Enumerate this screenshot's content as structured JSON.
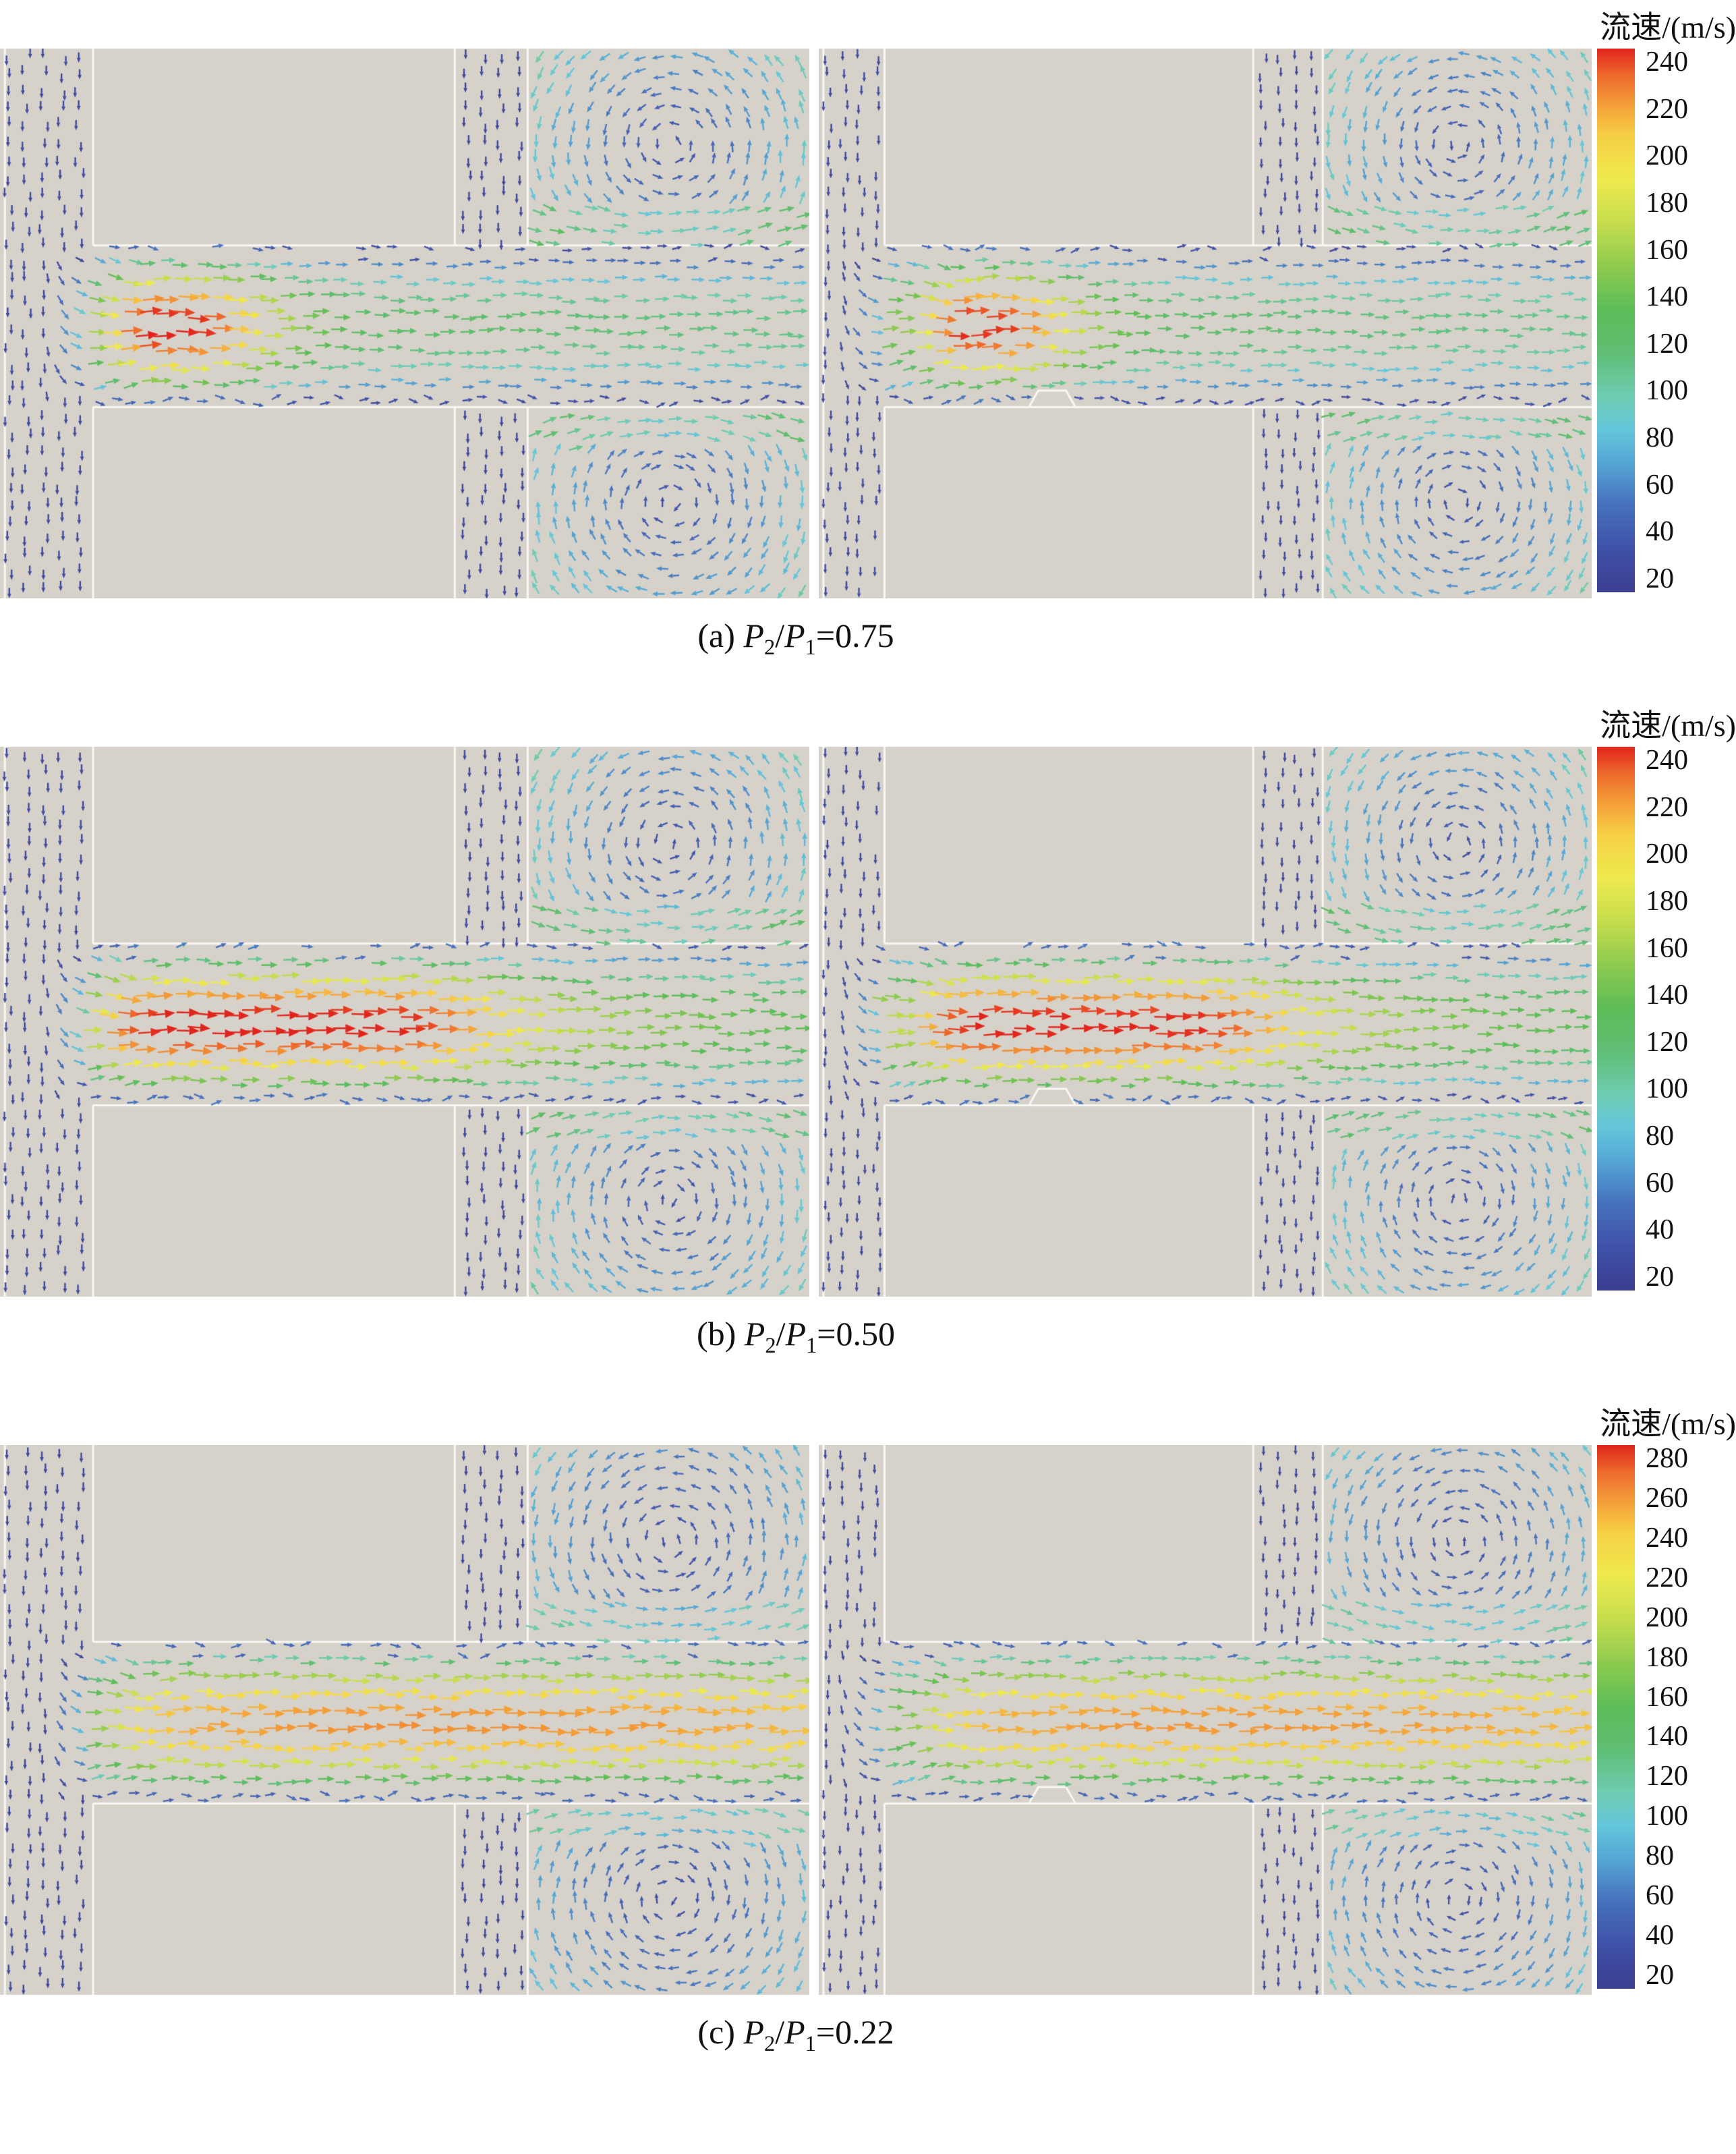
{
  "page": {
    "background": "#ffffff"
  },
  "figure": {
    "rows": [
      {
        "id": "a",
        "caption": {
          "plain_text": "(a) P2/P1=0.75",
          "segments": [
            {
              "text": "(a) ",
              "style": "plain"
            },
            {
              "text": "P",
              "style": "italic"
            },
            {
              "text": "2",
              "style": "sub"
            },
            {
              "text": "/",
              "style": "plain"
            },
            {
              "text": "P",
              "style": "italic"
            },
            {
              "text": "1",
              "style": "sub"
            },
            {
              "text": "=0.75",
              "style": "plain"
            }
          ]
        },
        "colorbar": {
          "title": "流速/(m/s)",
          "max": 240,
          "min": 20,
          "ticks": [
            240,
            220,
            200,
            180,
            160,
            140,
            120,
            100,
            80,
            60,
            40,
            20
          ]
        }
      },
      {
        "id": "b",
        "caption": {
          "plain_text": "(b) P2/P1=0.50",
          "segments": [
            {
              "text": "(b) ",
              "style": "plain"
            },
            {
              "text": "P",
              "style": "italic"
            },
            {
              "text": "2",
              "style": "sub"
            },
            {
              "text": "/",
              "style": "plain"
            },
            {
              "text": "P",
              "style": "italic"
            },
            {
              "text": "1",
              "style": "sub"
            },
            {
              "text": "=0.50",
              "style": "plain"
            }
          ]
        },
        "colorbar": {
          "title": "流速/(m/s)",
          "max": 240,
          "min": 20,
          "ticks": [
            240,
            220,
            200,
            180,
            160,
            140,
            120,
            100,
            80,
            60,
            40,
            20
          ]
        }
      },
      {
        "id": "c",
        "caption": {
          "plain_text": "(c) P2/P1=0.22",
          "segments": [
            {
              "text": "(c) ",
              "style": "plain"
            },
            {
              "text": "P",
              "style": "italic"
            },
            {
              "text": "2",
              "style": "sub"
            },
            {
              "text": "/",
              "style": "plain"
            },
            {
              "text": "P",
              "style": "italic"
            },
            {
              "text": "1",
              "style": "sub"
            },
            {
              "text": "=0.22",
              "style": "plain"
            }
          ]
        },
        "colorbar": {
          "title": "流速/(m/s)",
          "max": 280,
          "min": 20,
          "ticks": [
            280,
            260,
            240,
            220,
            200,
            180,
            160,
            140,
            120,
            100,
            80,
            60,
            40,
            20
          ]
        }
      }
    ]
  },
  "chart_data": [
    {
      "type": "vector_field",
      "subfigure": "a",
      "title": "(a) P2/P1=0.75",
      "pressure_ratio": 0.75,
      "colorbar": {
        "label": "流速/(m/s)",
        "units": "m/s",
        "min": 20,
        "max": 240,
        "tick_step": 20,
        "ticks": [
          240,
          220,
          200,
          180,
          160,
          140,
          120,
          100,
          80,
          60,
          40,
          20
        ]
      },
      "panels": [
        {
          "position": "left",
          "notch": false,
          "jet_profile": {
            "x": [
              0.115,
              0.15,
              0.18,
              0.26,
              0.31,
              0.37,
              0.45,
              0.6,
              0.8,
              1.0
            ],
            "speed": [
              150,
              215,
              245,
              238,
              195,
              150,
              125,
              120,
              115,
              112
            ]
          }
        },
        {
          "position": "right",
          "notch": true,
          "jet_profile": {
            "x": [
              0.115,
              0.15,
              0.18,
              0.26,
              0.31,
              0.37,
              0.45,
              0.6,
              0.8,
              1.0
            ],
            "speed": [
              150,
              210,
              242,
              235,
              190,
              148,
              124,
              118,
              114,
              110
            ]
          }
        }
      ],
      "features": [
        "inlet channels with slow downward flow ~30 m/s",
        "short high-speed jet through throat up to ~245 m/s near inlet",
        "downstream channel flow ~110-130 m/s",
        "recirculation vortices in upper and lower right chambers ~40-100 m/s"
      ]
    },
    {
      "type": "vector_field",
      "subfigure": "b",
      "title": "(b) P2/P1=0.50",
      "pressure_ratio": 0.5,
      "colorbar": {
        "label": "流速/(m/s)",
        "units": "m/s",
        "min": 20,
        "max": 240,
        "tick_step": 20,
        "ticks": [
          240,
          220,
          200,
          180,
          160,
          140,
          120,
          100,
          80,
          60,
          40,
          20
        ]
      },
      "panels": [
        {
          "position": "left",
          "notch": false,
          "jet_profile": {
            "x": [
              0.115,
              0.15,
              0.2,
              0.5,
              0.56,
              0.62,
              0.7,
              0.8,
              0.9,
              1.0
            ],
            "speed": [
              170,
              230,
              245,
              242,
              225,
              195,
              168,
              150,
              140,
              135
            ]
          }
        },
        {
          "position": "right",
          "notch": true,
          "jet_profile": {
            "x": [
              0.115,
              0.15,
              0.2,
              0.5,
              0.56,
              0.62,
              0.7,
              0.8,
              0.9,
              1.0
            ],
            "speed": [
              168,
              228,
              243,
              240,
              222,
              192,
              165,
              148,
              138,
              133
            ]
          }
        }
      ],
      "features": [
        "extended supersonic jet filling most of the throttling channel ~240 m/s",
        "recirculation vortices in right chambers ~40-100 m/s"
      ]
    },
    {
      "type": "vector_field",
      "subfigure": "c",
      "title": "(c) P2/P1=0.22",
      "pressure_ratio": 0.22,
      "colorbar": {
        "label": "流速/(m/s)",
        "units": "m/s",
        "min": 20,
        "max": 280,
        "tick_step": 20,
        "ticks": [
          280,
          260,
          240,
          220,
          200,
          180,
          160,
          140,
          120,
          100,
          80,
          60,
          40,
          20
        ]
      },
      "panels": [
        {
          "position": "left",
          "notch": false,
          "jet_profile": {
            "x": [
              0.115,
              0.16,
              0.22,
              0.4,
              0.6,
              0.8,
              0.9,
              1.0
            ],
            "speed": [
              170,
              225,
              250,
              258,
              258,
              255,
              250,
              245
            ]
          }
        },
        {
          "position": "right",
          "notch": true,
          "jet_profile": {
            "x": [
              0.115,
              0.16,
              0.22,
              0.4,
              0.6,
              0.8,
              0.9,
              1.0
            ],
            "speed": [
              168,
              222,
              248,
              256,
              256,
              253,
              248,
              243
            ]
          }
        }
      ],
      "features": [
        "jet stays near ~255 m/s across whole channel to the outlet",
        "chamber recirculation appears relatively slower (bluer) on 280 m/s scale"
      ]
    }
  ],
  "style": {
    "panel_background": "#d6d2ca",
    "boundary_line": "#f8f7f4",
    "colormap": [
      [
        0.0,
        "#3b3e8f"
      ],
      [
        0.08,
        "#3f51a8"
      ],
      [
        0.16,
        "#4671bd"
      ],
      [
        0.24,
        "#55a7d5"
      ],
      [
        0.3,
        "#63c6da"
      ],
      [
        0.36,
        "#6fccb2"
      ],
      [
        0.44,
        "#5fbe74"
      ],
      [
        0.52,
        "#5dbd57"
      ],
      [
        0.6,
        "#8ecb4f"
      ],
      [
        0.68,
        "#c6dd4d"
      ],
      [
        0.76,
        "#eeea4e"
      ],
      [
        0.84,
        "#f6cf44"
      ],
      [
        0.9,
        "#f39b38"
      ],
      [
        0.95,
        "#ee6a2c"
      ],
      [
        1.0,
        "#e0251d"
      ]
    ]
  }
}
